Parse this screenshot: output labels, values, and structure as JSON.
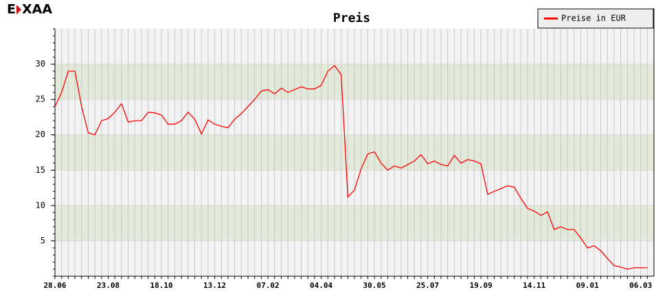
{
  "logo": {
    "parts": [
      "E",
      "XAA"
    ]
  },
  "chart_data": {
    "type": "line",
    "title": "Preis",
    "categories": [
      "28.06",
      null,
      null,
      null,
      null,
      null,
      null,
      null,
      "23.08",
      null,
      null,
      null,
      null,
      null,
      null,
      null,
      "18.10",
      null,
      null,
      null,
      null,
      null,
      null,
      null,
      "13.12",
      null,
      null,
      null,
      null,
      null,
      null,
      null,
      "07.02",
      null,
      null,
      null,
      null,
      null,
      null,
      null,
      "04.04",
      null,
      null,
      null,
      null,
      null,
      null,
      null,
      "30.05",
      null,
      null,
      null,
      null,
      null,
      null,
      null,
      "25.07",
      null,
      null,
      null,
      null,
      null,
      null,
      null,
      "19.09",
      null,
      null,
      null,
      null,
      null,
      null,
      null,
      "14.11",
      null,
      null,
      null,
      null,
      null,
      null,
      null,
      "09.01",
      null,
      null,
      null,
      null,
      null,
      null,
      null,
      "06.03",
      null
    ],
    "series": [
      {
        "name": "Preise in EUR",
        "color": "#ff0000",
        "values": [
          24,
          26,
          29,
          29,
          24,
          20.3,
          20,
          22,
          22.3,
          23.2,
          24.4,
          21.8,
          22,
          22,
          23.2,
          23.1,
          22.8,
          21.5,
          21.5,
          22,
          23.2,
          22.2,
          20.1,
          22.1,
          21.5,
          21.2,
          21,
          22.2,
          23,
          24,
          25,
          26.2,
          26.4,
          25.8,
          26.6,
          26,
          26.4,
          26.8,
          26.5,
          26.5,
          27,
          29,
          29.8,
          28.5,
          11.2,
          12.2,
          15.2,
          17.3,
          17.6,
          16,
          15,
          15.6,
          15.3,
          15.8,
          16.3,
          17.2,
          15.9,
          16.3,
          15.8,
          15.6,
          17.1,
          16,
          16.5,
          16.3,
          15.9,
          11.6,
          12,
          12.4,
          12.8,
          12.6,
          11,
          9.6,
          9.2,
          8.6,
          9.1,
          6.6,
          7,
          6.6,
          6.6,
          5.4,
          4,
          4.3,
          3.6,
          2.5,
          1.5,
          1.3,
          1.0,
          1.2,
          1.2,
          1.2
        ]
      }
    ],
    "ylim": [
      0,
      35
    ],
    "yticks": [
      5,
      10,
      15,
      20,
      25,
      30
    ],
    "grid": true,
    "legend": "top-right"
  }
}
